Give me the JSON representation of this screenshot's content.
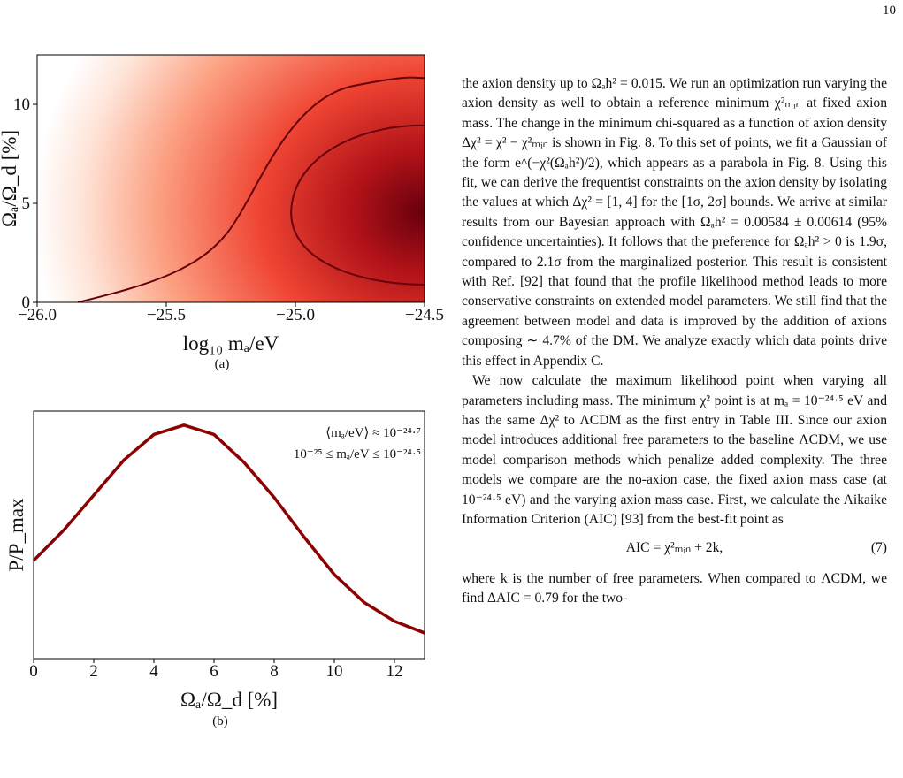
{
  "page_number": "10",
  "figures": {
    "a": {
      "type": "heatmap",
      "caption": "(a)",
      "xlabel": "log₁₀ mₐ/eV",
      "ylabel": "Ωₐ/Ω_d [%]",
      "xlim": [
        -26,
        -24.5
      ],
      "ylim": [
        0,
        12.5
      ],
      "xticks": [
        {
          "value": -26,
          "label": "−26.0"
        },
        {
          "value": -25.5,
          "label": "−25.5"
        },
        {
          "value": -25,
          "label": "−25.0"
        },
        {
          "value": -24.5,
          "label": "−24.5"
        }
      ],
      "yticks": [
        0,
        5,
        10
      ]
    },
    "b": {
      "type": "line",
      "caption": "(b)",
      "xlabel": "Ωₐ/Ω_d [%]",
      "ylabel": "P/P_max",
      "annotations": [
        "⟨mₐ/eV⟩ ≈ 10⁻²⁴·⁷",
        "10⁻²⁵ ≤ mₐ/eV ≤ 10⁻²⁴·⁵"
      ],
      "color": "#8b0000",
      "xlim": [
        0,
        13
      ],
      "ylim": [
        0,
        1.06
      ],
      "xticks": [
        0,
        2,
        4,
        6,
        8,
        10,
        12
      ],
      "x": [
        0,
        1,
        2,
        3,
        4,
        5,
        6,
        7,
        8,
        9,
        10,
        11,
        12,
        13
      ],
      "values": [
        0.42,
        0.55,
        0.7,
        0.85,
        0.96,
        1.0,
        0.96,
        0.84,
        0.69,
        0.52,
        0.36,
        0.24,
        0.16,
        0.11
      ]
    }
  },
  "body": {
    "paragraphs": [
      "the axion density up to Ωₐh² = 0.015. We run an optimization run varying the axion density as well to obtain a reference minimum χ²ₘᵢₙ at fixed axion mass. The change in the minimum chi-squared as a function of axion density Δχ² = χ² − χ²ₘᵢₙ is shown in Fig. 8. To this set of points, we fit a Gaussian of the form e^(−χ²(Ωₐh²)/2), which appears as a parabola in Fig. 8. Using this fit, we can derive the frequentist constraints on the axion density by isolating the values at which Δχ² = [1, 4] for the [1σ, 2σ] bounds. We arrive at similar results from our Bayesian approach with Ωₐh² = 0.00584 ± 0.00614 (95% confidence uncertainties). It follows that the preference for Ωₐh² > 0 is 1.9σ, compared to 2.1σ from the marginalized posterior. This result is consistent with Ref. [92] that found that the profile likelihood method leads to more conservative constraints on extended model parameters. We still find that the agreement between model and data is improved by the addition of axions composing ∼ 4.7% of the DM. We analyze exactly which data points drive this effect in Appendix C.",
      "We now calculate the maximum likelihood point when varying all parameters including mass. The minimum χ² point is at mₐ = 10⁻²⁴·⁵ eV and has the same Δχ² to ΛCDM as the first entry in Table III. Since our axion model introduces additional free parameters to the baseline ΛCDM, we use model comparison methods which penalize added complexity. The three models we compare are the no-axion case, the fixed axion mass case (at 10⁻²⁴·⁵ eV) and the varying axion mass case. First, we calculate the Aikaike Information Criterion (AIC) [93] from the best-fit point as"
    ],
    "equation": {
      "text": "AIC = χ²ₘᵢₙ + 2k,",
      "number": "(7)"
    },
    "closing": "where k is the number of free parameters. When compared to ΛCDM, we find ΔAIC = 0.79 for the two-"
  }
}
